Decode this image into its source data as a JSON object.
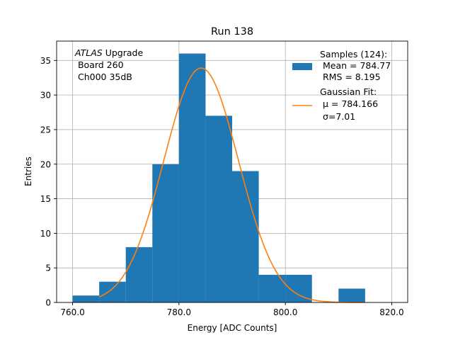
{
  "chart_data": {
    "type": "bar",
    "title": "Run 138",
    "xlabel": "Energy [ADC Counts]",
    "ylabel": "Entries",
    "xlim": [
      757,
      823
    ],
    "ylim": [
      0,
      37.8
    ],
    "grid": true,
    "x_ticks": [
      760,
      780,
      800,
      820
    ],
    "x_tick_labels": [
      "760.0",
      "780.0",
      "800.0",
      "820.0"
    ],
    "y_ticks": [
      0,
      5,
      10,
      15,
      20,
      25,
      30,
      35
    ],
    "y_tick_labels": [
      "0",
      "5",
      "10",
      "15",
      "20",
      "25",
      "30",
      "35"
    ],
    "histogram": {
      "bin_edges": [
        760,
        765,
        770,
        775,
        780,
        785,
        790,
        795,
        800,
        805,
        810,
        815
      ],
      "counts": [
        1,
        3,
        8,
        20,
        36,
        27,
        19,
        4,
        4,
        0,
        2
      ],
      "color": "#1f77b4"
    },
    "gaussian_fit": {
      "mu": 784.166,
      "sigma": 7.01,
      "amplitude": 33.9,
      "x_range": [
        765,
        815
      ],
      "color": "#ff7f0e"
    },
    "text_box": {
      "line1_italic": "ATLAS",
      "line1_rest": " Upgrade",
      "line2": " Board 260",
      "line3": " Ch000 35dB"
    },
    "legend": {
      "placement": "top-right",
      "samples_title": "Samples (124):",
      "samples_mean": " Mean = 784.77",
      "samples_rms": " RMS = 8.195",
      "fit_title": "Gaussian Fit:",
      "fit_mu": " μ = 784.166",
      "fit_sigma": " σ=7.01"
    }
  }
}
